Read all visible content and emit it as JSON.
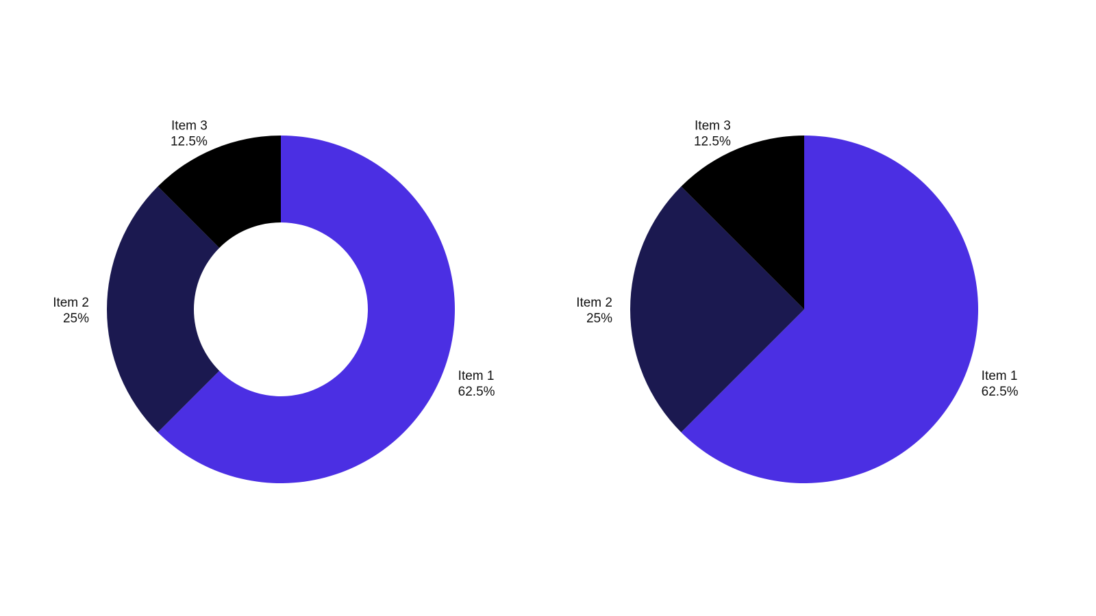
{
  "chart_data": [
    {
      "type": "pie",
      "variant": "donut",
      "title": "",
      "start": "top",
      "direction": "clockwise",
      "slices": [
        {
          "label": "Item 1",
          "value": 62.5,
          "value_text": "62.5%",
          "color": "#4b2fe3"
        },
        {
          "label": "Item 2",
          "value": 25,
          "value_text": "25%",
          "color": "#1b1950"
        },
        {
          "label": "Item 3",
          "value": 12.5,
          "value_text": "12.5%",
          "color": "#000000"
        }
      ]
    },
    {
      "type": "pie",
      "variant": "pie",
      "title": "",
      "start": "top",
      "direction": "clockwise",
      "slices": [
        {
          "label": "Item 1",
          "value": 62.5,
          "value_text": "62.5%",
          "color": "#4b2fe3"
        },
        {
          "label": "Item 2",
          "value": 25,
          "value_text": "25%",
          "color": "#1b1950"
        },
        {
          "label": "Item 3",
          "value": 12.5,
          "value_text": "12.5%",
          "color": "#000000"
        }
      ]
    }
  ]
}
